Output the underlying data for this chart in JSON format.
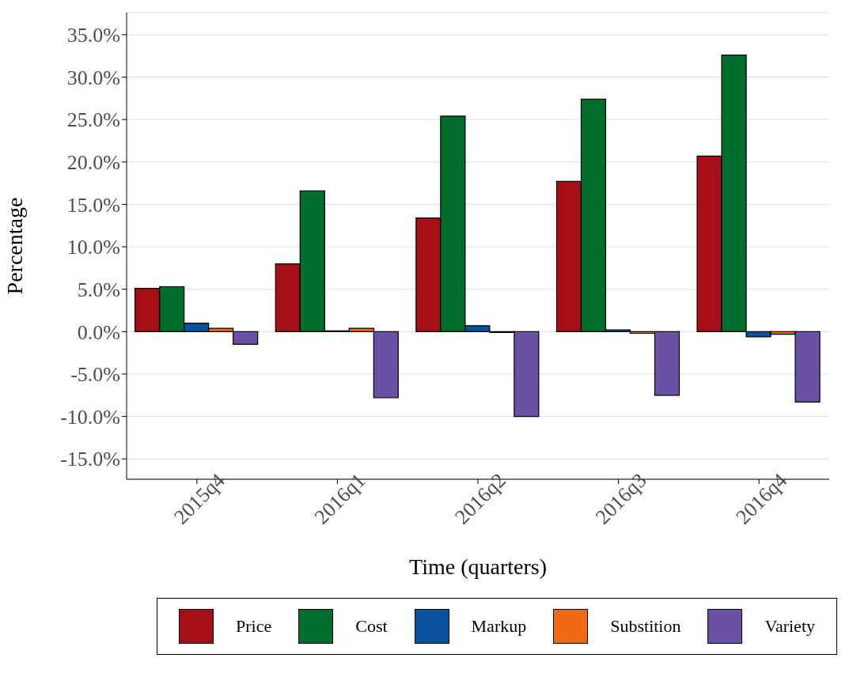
{
  "chart_data": {
    "type": "bar",
    "xlabel": "Time (quarters)",
    "ylabel": "Percentage",
    "categories": [
      "2015q4",
      "2016q1",
      "2016q2",
      "2016q3",
      "2016q4"
    ],
    "series": [
      {
        "name": "Price",
        "color": "#a50f15",
        "values": [
          5.1,
          8.0,
          13.4,
          17.7,
          20.7
        ]
      },
      {
        "name": "Cost",
        "color": "#006d2c",
        "values": [
          5.3,
          16.6,
          25.4,
          27.4,
          32.6
        ]
      },
      {
        "name": "Markup",
        "color": "#08519c",
        "values": [
          1.0,
          0.1,
          0.7,
          0.2,
          -0.6
        ]
      },
      {
        "name": "Substition",
        "color": "#f16913",
        "values": [
          0.4,
          0.4,
          -0.1,
          -0.2,
          -0.3
        ]
      },
      {
        "name": "Variety",
        "color": "#6a51a3",
        "values": [
          -1.5,
          -7.8,
          -10.0,
          -7.5,
          -8.3
        ]
      }
    ],
    "ylim": [
      -17.4,
      37.6
    ],
    "yticks": [
      {
        "value": -15,
        "label": "-15.0%"
      },
      {
        "value": -10,
        "label": "-10.0%"
      },
      {
        "value": -5,
        "label": "-5.0%"
      },
      {
        "value": 0,
        "label": "0.0%"
      },
      {
        "value": 5,
        "label": "5.0%"
      },
      {
        "value": 10,
        "label": "10.0%"
      },
      {
        "value": 15,
        "label": "15.0%"
      },
      {
        "value": 20,
        "label": "20.0%"
      },
      {
        "value": 25,
        "label": "25.0%"
      },
      {
        "value": 30,
        "label": "30.0%"
      },
      {
        "value": 35,
        "label": "35.0%"
      }
    ],
    "grid": "y",
    "legend": "bottom"
  }
}
